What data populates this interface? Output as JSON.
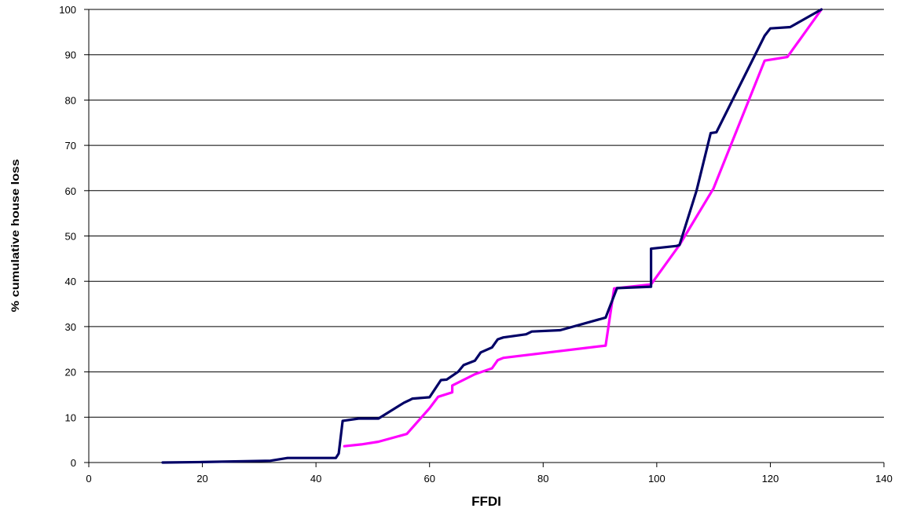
{
  "chart_data": {
    "type": "line",
    "title": "",
    "xlabel": "FFDI",
    "ylabel": "% cumulative house loss",
    "xlim": [
      0,
      140
    ],
    "ylim": [
      0,
      100
    ],
    "xticks": [
      0,
      20,
      40,
      60,
      80,
      100,
      120,
      140
    ],
    "yticks": [
      0,
      10,
      20,
      30,
      40,
      50,
      60,
      70,
      80,
      90,
      100
    ],
    "grid": "horizontal",
    "legend": "none",
    "series": [
      {
        "color": "#000066",
        "points": [
          [
            13,
            0
          ],
          [
            20,
            0.1
          ],
          [
            32,
            0.4
          ],
          [
            35,
            1
          ],
          [
            43.5,
            1
          ],
          [
            44,
            2
          ],
          [
            44.7,
            9.2
          ],
          [
            47.5,
            9.7
          ],
          [
            51,
            9.7
          ],
          [
            55.5,
            13.2
          ],
          [
            56.5,
            13.8
          ],
          [
            57,
            14.1
          ],
          [
            60,
            14.4
          ],
          [
            62,
            18.2
          ],
          [
            63,
            18.3
          ],
          [
            65,
            20
          ],
          [
            66,
            21.5
          ],
          [
            68,
            22.5
          ],
          [
            69,
            24.3
          ],
          [
            71,
            25.4
          ],
          [
            72,
            27.2
          ],
          [
            73,
            27.6
          ],
          [
            77,
            28.3
          ],
          [
            78,
            28.9
          ],
          [
            83,
            29.2
          ],
          [
            91,
            32
          ],
          [
            93,
            38.5
          ],
          [
            99,
            38.8
          ],
          [
            99,
            47.2
          ],
          [
            103.5,
            47.8
          ],
          [
            104,
            48
          ],
          [
            107,
            60
          ],
          [
            109.5,
            72.7
          ],
          [
            110.5,
            72.9
          ],
          [
            119,
            94.2
          ],
          [
            120,
            95.8
          ],
          [
            123.5,
            96.1
          ],
          [
            129,
            100
          ]
        ]
      },
      {
        "color": "#ff00ff",
        "points": [
          [
            45,
            3.6
          ],
          [
            48,
            4
          ],
          [
            51,
            4.6
          ],
          [
            56,
            6.3
          ],
          [
            60,
            12
          ],
          [
            61.5,
            14.5
          ],
          [
            64,
            15.5
          ],
          [
            64,
            17
          ],
          [
            68,
            19.5
          ],
          [
            71,
            20.8
          ],
          [
            72,
            22.6
          ],
          [
            73,
            23.1
          ],
          [
            91,
            25.8
          ],
          [
            92.5,
            38.4
          ],
          [
            99,
            39.3
          ],
          [
            104,
            48
          ],
          [
            110,
            60.5
          ],
          [
            119,
            88.7
          ],
          [
            123,
            89.5
          ],
          [
            129,
            100
          ]
        ]
      }
    ]
  }
}
